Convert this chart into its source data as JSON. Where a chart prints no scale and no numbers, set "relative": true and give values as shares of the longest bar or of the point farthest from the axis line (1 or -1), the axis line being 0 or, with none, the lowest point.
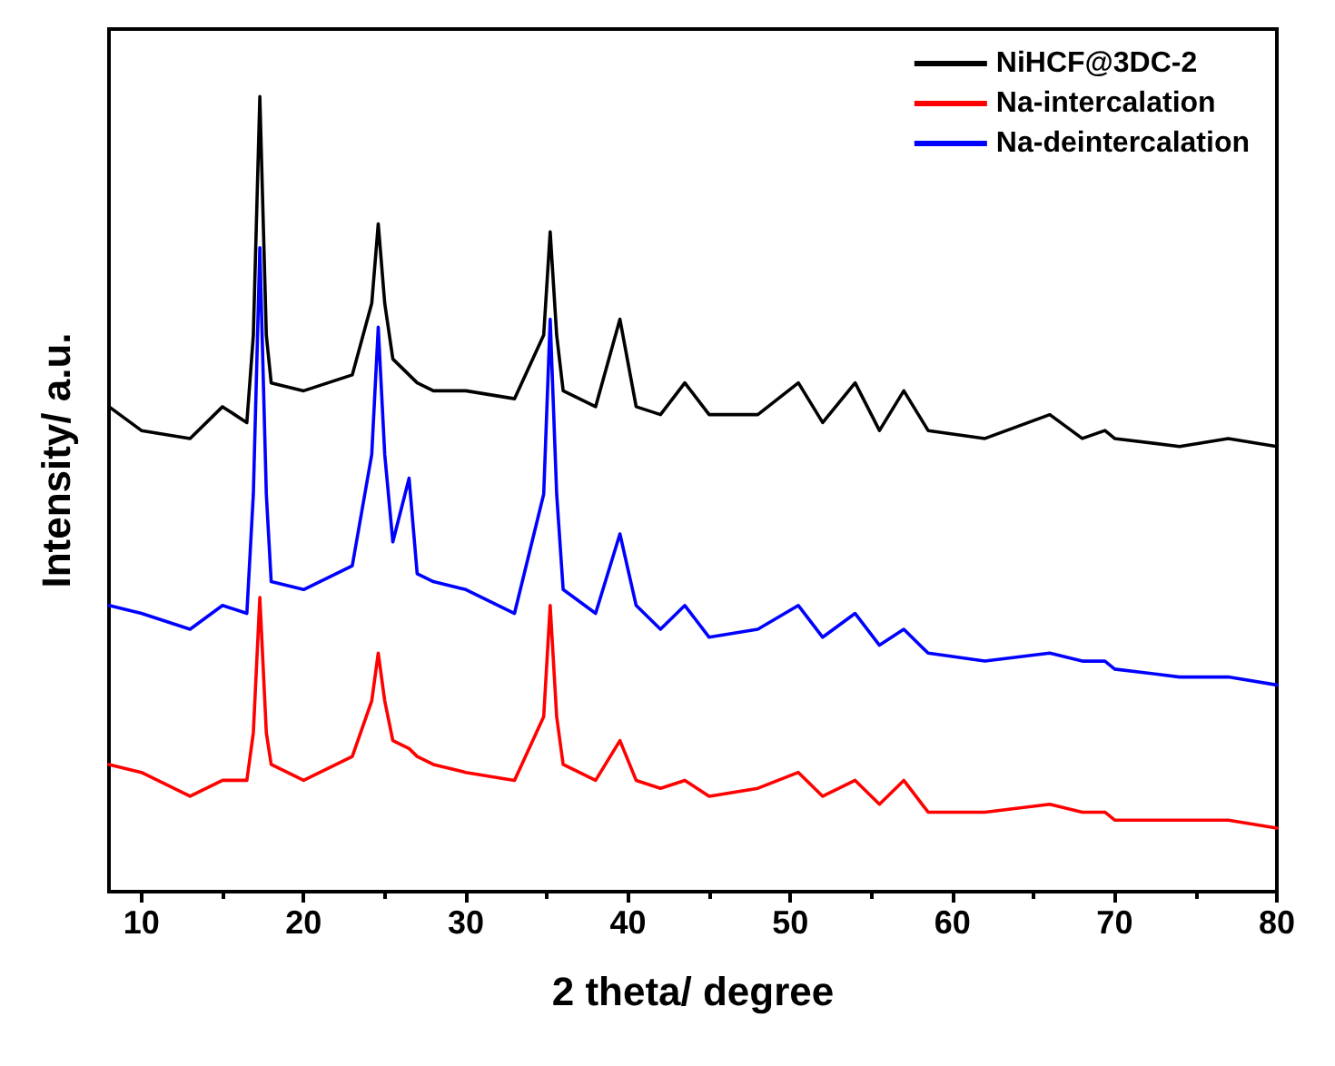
{
  "chart_data": {
    "type": "line",
    "xlabel": "2 theta/ degree",
    "ylabel": "Intensity/ a.u.",
    "relative": true,
    "xlim": [
      8,
      80
    ],
    "xticks": [
      10,
      20,
      30,
      40,
      50,
      60,
      70,
      80
    ],
    "legend": "top right",
    "grid": false,
    "marker": "none",
    "line_style": "solid",
    "x": [
      8,
      10,
      13,
      15,
      16.5,
      16.9,
      17.3,
      17.7,
      18,
      20,
      23,
      24.2,
      24.6,
      25,
      25.5,
      26.5,
      27,
      28,
      30,
      33,
      34.8,
      35.2,
      35.6,
      36,
      38,
      39.5,
      40.5,
      42,
      43.5,
      45,
      48,
      50.5,
      52,
      54,
      55.5,
      57,
      58.5,
      62,
      66,
      68,
      69.4,
      70,
      74,
      77,
      80
    ],
    "series": [
      {
        "name": "NiHCF@3DC-2",
        "color": "#000000",
        "values": [
          0.61,
          0.58,
          0.57,
          0.61,
          0.59,
          0.7,
          1.0,
          0.7,
          0.64,
          0.63,
          0.65,
          0.74,
          0.84,
          0.74,
          0.67,
          0.65,
          0.64,
          0.63,
          0.63,
          0.62,
          0.7,
          0.83,
          0.7,
          0.63,
          0.61,
          0.72,
          0.61,
          0.6,
          0.64,
          0.6,
          0.6,
          0.64,
          0.59,
          0.64,
          0.58,
          0.63,
          0.58,
          0.57,
          0.6,
          0.57,
          0.58,
          0.57,
          0.56,
          0.57,
          0.56
        ]
      },
      {
        "name": "Na-intercalation",
        "color": "#ff0000",
        "values": [
          0.16,
          0.15,
          0.12,
          0.14,
          0.14,
          0.2,
          0.37,
          0.2,
          0.16,
          0.14,
          0.17,
          0.24,
          0.3,
          0.24,
          0.19,
          0.18,
          0.17,
          0.16,
          0.15,
          0.14,
          0.22,
          0.36,
          0.22,
          0.16,
          0.14,
          0.19,
          0.14,
          0.13,
          0.14,
          0.12,
          0.13,
          0.15,
          0.12,
          0.14,
          0.11,
          0.14,
          0.1,
          0.1,
          0.11,
          0.1,
          0.1,
          0.09,
          0.09,
          0.09,
          0.08
        ]
      },
      {
        "name": "Na-deintercalation",
        "color": "#0000ff",
        "values": [
          0.36,
          0.35,
          0.33,
          0.36,
          0.35,
          0.5,
          0.81,
          0.5,
          0.39,
          0.38,
          0.41,
          0.55,
          0.71,
          0.55,
          0.44,
          0.52,
          0.4,
          0.39,
          0.38,
          0.35,
          0.5,
          0.72,
          0.5,
          0.38,
          0.35,
          0.45,
          0.36,
          0.33,
          0.36,
          0.32,
          0.33,
          0.36,
          0.32,
          0.35,
          0.31,
          0.33,
          0.3,
          0.29,
          0.3,
          0.29,
          0.29,
          0.28,
          0.27,
          0.27,
          0.26
        ]
      }
    ]
  }
}
